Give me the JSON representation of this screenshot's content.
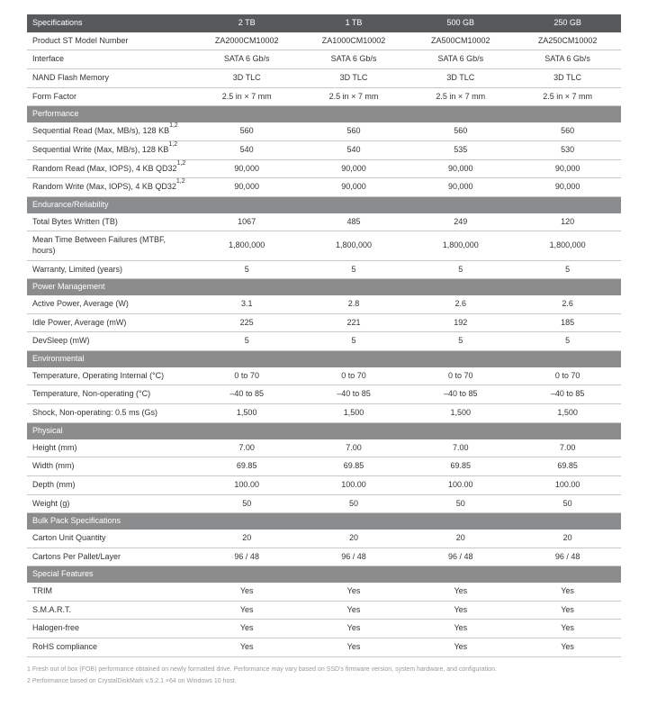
{
  "colors": {
    "header_bg": "#58595b",
    "section_bg": "#8a8c8e",
    "text": "#333333",
    "border": "#c8c8c8",
    "footnote": "#9a9a9a"
  },
  "columns": [
    "2 TB",
    "1 TB",
    "500 GB",
    "250 GB"
  ],
  "header_label": "Specifications",
  "top_rows": [
    {
      "label": "Product ST Model Number",
      "vals": [
        "ZA2000CM10002",
        "ZA1000CM10002",
        "ZA500CM10002",
        "ZA250CM10002"
      ]
    },
    {
      "label": "Interface",
      "vals": [
        "SATA 6 Gb/s",
        "SATA 6 Gb/s",
        "SATA 6 Gb/s",
        "SATA 6 Gb/s"
      ]
    },
    {
      "label": "NAND Flash Memory",
      "vals": [
        "3D TLC",
        "3D TLC",
        "3D TLC",
        "3D TLC"
      ]
    },
    {
      "label": "Form Factor",
      "vals": [
        "2.5 in × 7 mm",
        "2.5 in × 7 mm",
        "2.5 in × 7 mm",
        "2.5 in × 7 mm"
      ]
    }
  ],
  "sections": [
    {
      "title": "Performance",
      "rows": [
        {
          "label": "Sequential Read (Max, MB/s), 128 KB",
          "sup": "1,2",
          "vals": [
            "560",
            "560",
            "560",
            "560"
          ]
        },
        {
          "label": "Sequential Write (Max, MB/s), 128 KB",
          "sup": "1,2",
          "vals": [
            "540",
            "540",
            "535",
            "530"
          ]
        },
        {
          "label": "Random Read (Max, IOPS), 4 KB QD32",
          "sup": "1,2",
          "vals": [
            "90,000",
            "90,000",
            "90,000",
            "90,000"
          ]
        },
        {
          "label": "Random Write (Max, IOPS), 4 KB QD32",
          "sup": "1,2",
          "vals": [
            "90,000",
            "90,000",
            "90,000",
            "90,000"
          ]
        }
      ]
    },
    {
      "title": "Endurance/Reliability",
      "rows": [
        {
          "label": "Total Bytes Written (TB)",
          "vals": [
            "1067",
            "485",
            "249",
            "120"
          ]
        },
        {
          "label": "Mean Time Between Failures (MTBF, hours)",
          "vals": [
            "1,800,000",
            "1,800,000",
            "1,800,000",
            "1,800,000"
          ]
        },
        {
          "label": "Warranty, Limited (years)",
          "vals": [
            "5",
            "5",
            "5",
            "5"
          ]
        }
      ]
    },
    {
      "title": "Power Management",
      "rows": [
        {
          "label": "Active Power, Average (W)",
          "vals": [
            "3.1",
            "2.8",
            "2.6",
            "2.6"
          ]
        },
        {
          "label": "Idle Power, Average (mW)",
          "vals": [
            "225",
            "221",
            "192",
            "185"
          ]
        },
        {
          "label": "DevSleep (mW)",
          "vals": [
            "5",
            "5",
            "5",
            "5"
          ]
        }
      ]
    },
    {
      "title": "Environmental",
      "rows": [
        {
          "label": "Temperature, Operating Internal (°C)",
          "vals": [
            "0 to 70",
            "0 to 70",
            "0 to 70",
            "0 to 70"
          ]
        },
        {
          "label": "Temperature, Non-operating (°C)",
          "vals": [
            "–40 to 85",
            "–40 to 85",
            "–40 to 85",
            "–40 to 85"
          ]
        },
        {
          "label": "Shock, Non-operating: 0.5 ms (Gs)",
          "vals": [
            "1,500",
            "1,500",
            "1,500",
            "1,500"
          ]
        }
      ]
    },
    {
      "title": "Physical",
      "rows": [
        {
          "label": "Height (mm)",
          "vals": [
            "7.00",
            "7.00",
            "7.00",
            "7.00"
          ]
        },
        {
          "label": "Width (mm)",
          "vals": [
            "69.85",
            "69.85",
            "69.85",
            "69.85"
          ]
        },
        {
          "label": "Depth (mm)",
          "vals": [
            "100.00",
            "100.00",
            "100.00",
            "100.00"
          ]
        },
        {
          "label": "Weight (g)",
          "vals": [
            "50",
            "50",
            "50",
            "50"
          ]
        }
      ]
    },
    {
      "title": "Bulk Pack Specifications",
      "rows": [
        {
          "label": "Carton Unit Quantity",
          "vals": [
            "20",
            "20",
            "20",
            "20"
          ]
        },
        {
          "label": "Cartons Per Pallet/Layer",
          "vals": [
            "96 / 48",
            "96 / 48",
            "96 / 48",
            "96 / 48"
          ]
        }
      ]
    },
    {
      "title": "Special Features",
      "rows": [
        {
          "label": "TRIM",
          "vals": [
            "Yes",
            "Yes",
            "Yes",
            "Yes"
          ]
        },
        {
          "label": "S.M.A.R.T.",
          "vals": [
            "Yes",
            "Yes",
            "Yes",
            "Yes"
          ]
        },
        {
          "label": "Halogen-free",
          "vals": [
            "Yes",
            "Yes",
            "Yes",
            "Yes"
          ]
        },
        {
          "label": "RoHS compliance",
          "vals": [
            "Yes",
            "Yes",
            "Yes",
            "Yes"
          ]
        }
      ]
    }
  ],
  "footnotes": [
    "1 Fresh out of box (FOB) performance obtained on newly formatted drive. Performance may vary based on SSD's firmware version, system hardware, and configuration.",
    "2 Performance based on CrystalDiskMark v.5.2.1 ×64 on Windows 10 host."
  ]
}
